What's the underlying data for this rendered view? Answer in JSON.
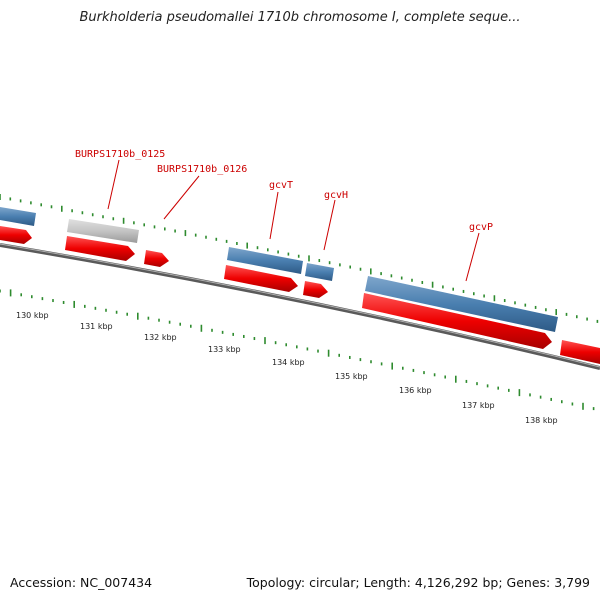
{
  "title": "Burkholderia pseudomallei 1710b chromosome I, complete seque...",
  "accession": "Accession: NC_007434",
  "summary": "Topology: circular; Length: 4,126,292 bp; Genes: 3,799",
  "colors": {
    "forward_gene": "#4a7fb0",
    "reverse_gene": "#ee0000",
    "pseudogene": "#c4c4c4",
    "backbone": "#707070",
    "ticks": "#2e8b2e",
    "label": "#cc0000"
  },
  "scale_labels": [
    "130 kbp",
    "131 kbp",
    "132 kbp",
    "133 kbp",
    "134 kbp",
    "135 kbp",
    "136 kbp",
    "137 kbp",
    "138 kbp"
  ],
  "gene_labels": [
    {
      "id": "lbl-0125",
      "text": "BURPS1710b_0125"
    },
    {
      "id": "lbl-0126",
      "text": "BURPS1710b_0126"
    },
    {
      "id": "lbl-gcvT",
      "text": "gcvT"
    },
    {
      "id": "lbl-gcvH",
      "text": "gcvH"
    },
    {
      "id": "lbl-gcvP",
      "text": "gcvP"
    }
  ]
}
